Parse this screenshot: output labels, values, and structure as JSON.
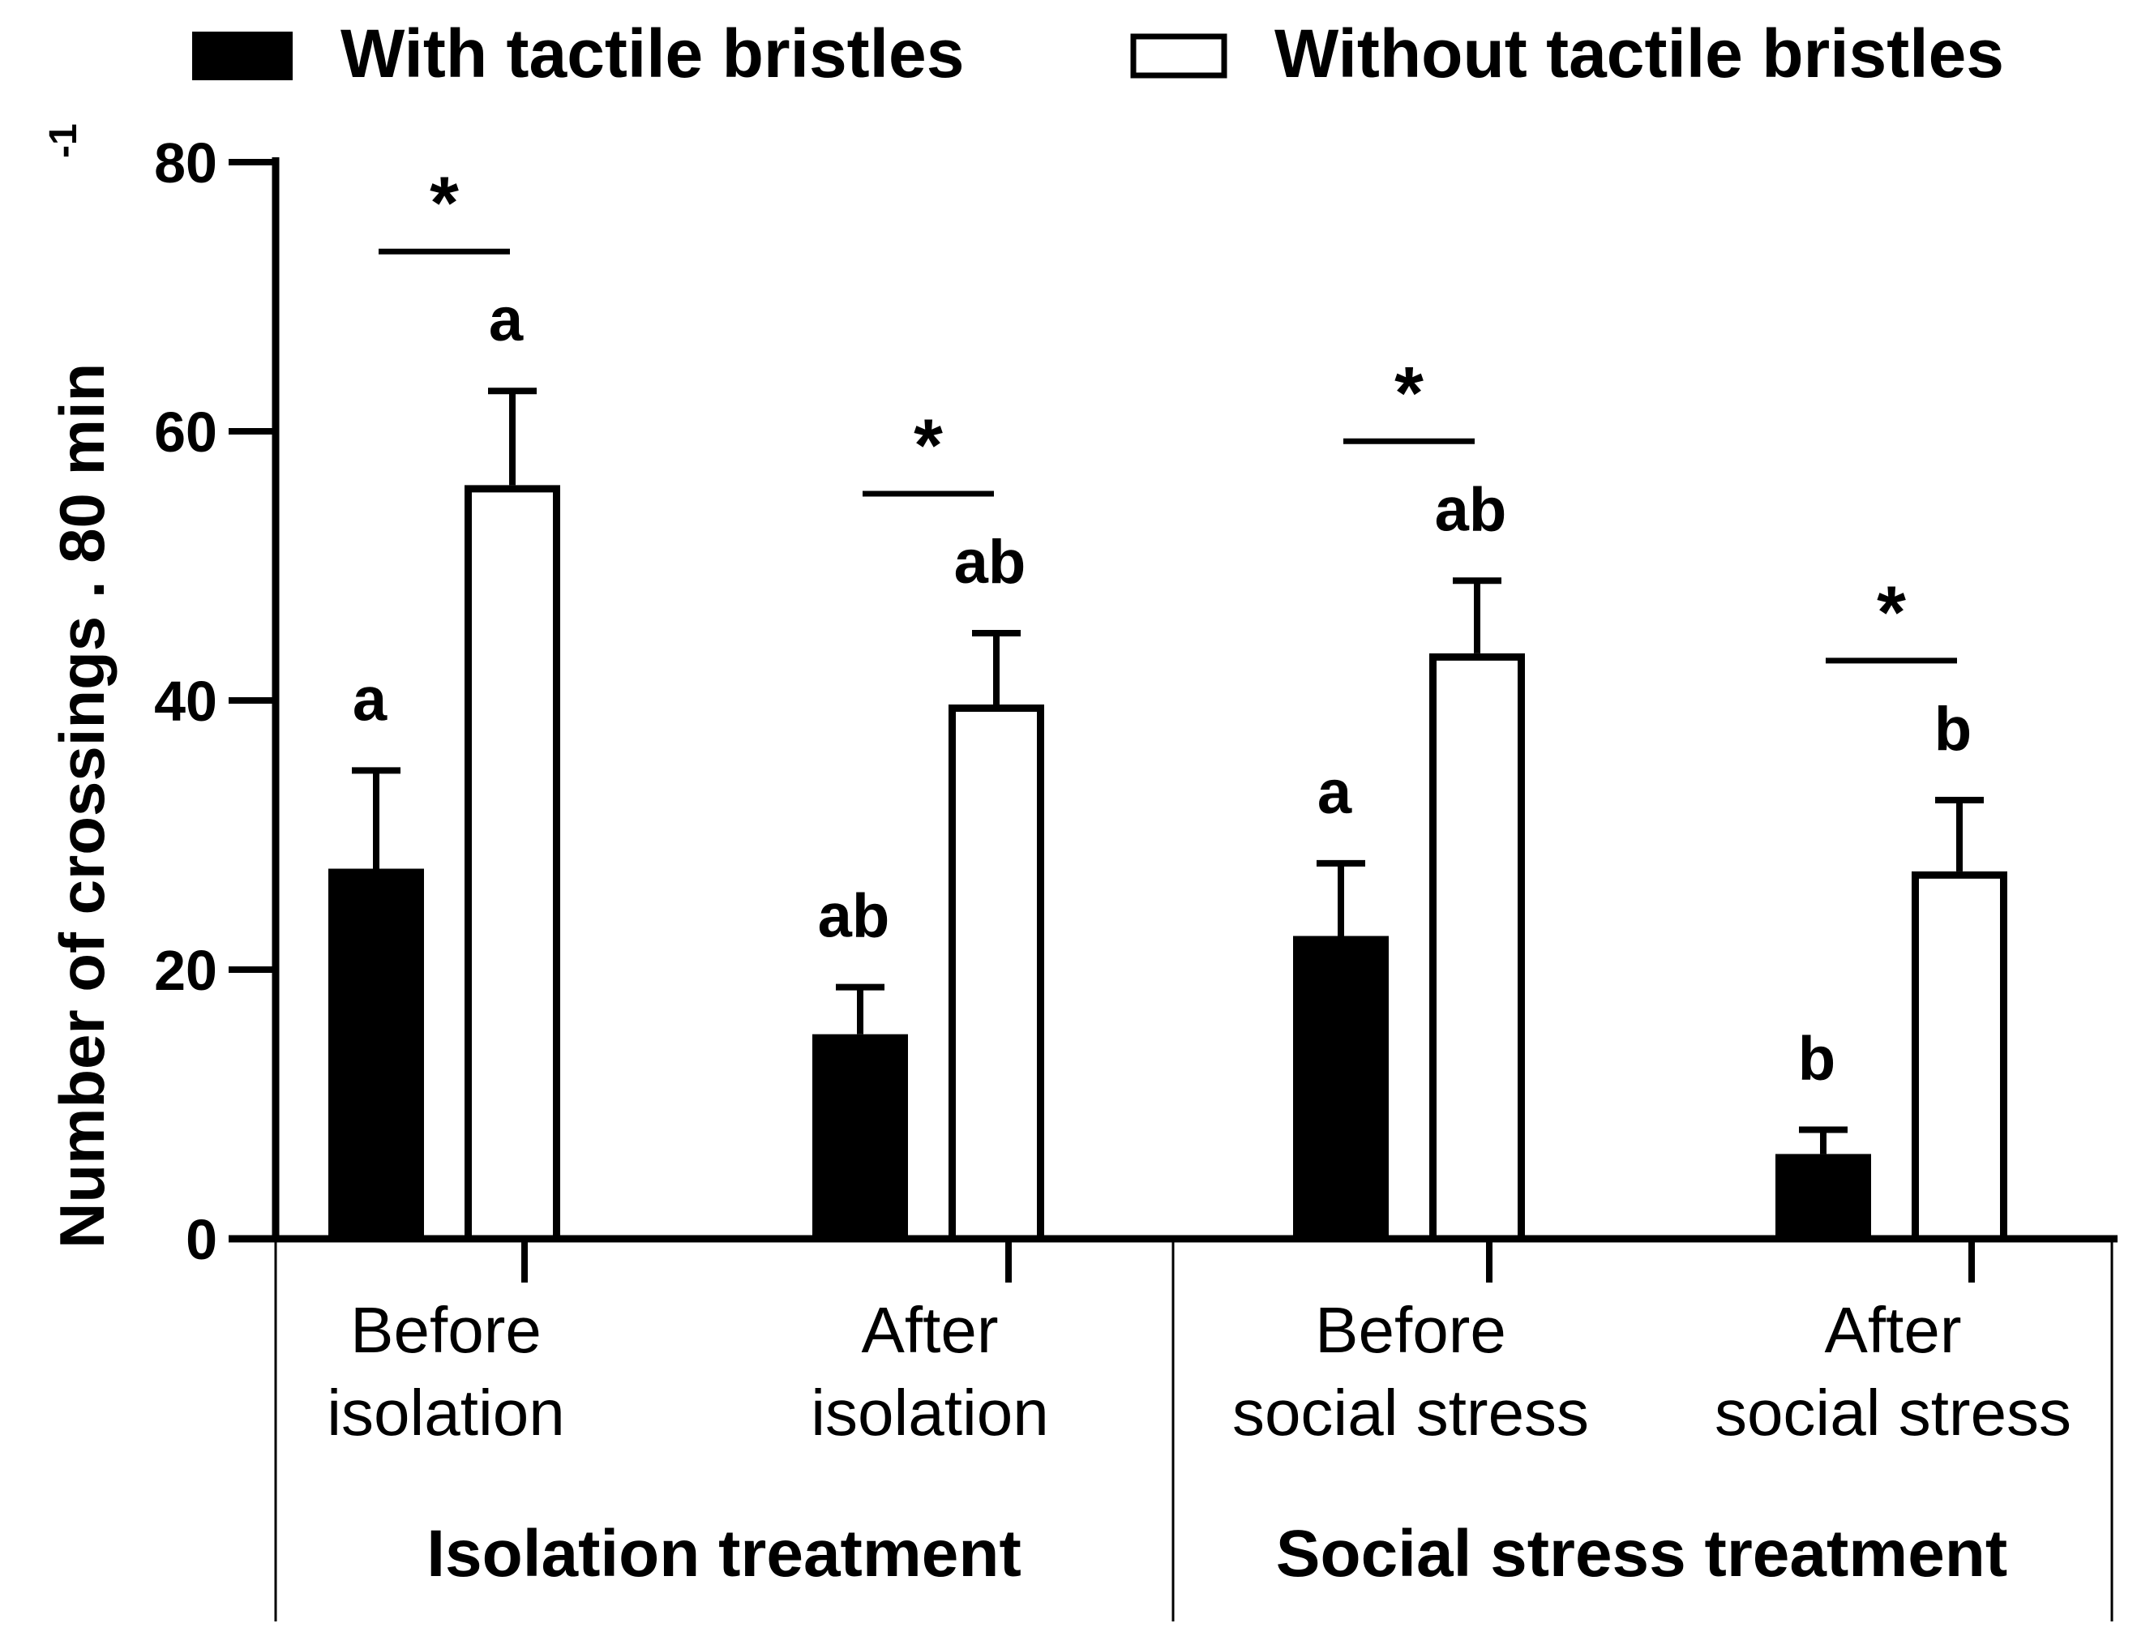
{
  "chart_data": {
    "type": "bar",
    "ylabel": "Number of crossings . 80 min",
    "ylabel_superscript": "-1",
    "ylim": [
      0,
      80
    ],
    "yticks": [
      0,
      20,
      40,
      60,
      80
    ],
    "categories": [
      [
        "Before",
        "isolation"
      ],
      [
        "After",
        "isolation"
      ],
      [
        "Before",
        "social stress"
      ],
      [
        "After",
        "social stress"
      ]
    ],
    "groups": [
      {
        "label": "Isolation treatment",
        "categories": [
          0,
          1
        ]
      },
      {
        "label": "Social stress treatment",
        "categories": [
          2,
          3
        ]
      }
    ],
    "series": [
      {
        "name": "With tactile bristles",
        "fill": "#000000",
        "values": [
          27.5,
          15.2,
          22.5,
          6.3
        ],
        "errors": [
          7.3,
          3.5,
          5.4,
          1.8
        ],
        "letters": [
          "a",
          "ab",
          "a",
          "b"
        ]
      },
      {
        "name": "Without tactile bristles",
        "fill": "#ffffff",
        "values": [
          56,
          39.7,
          43.5,
          27.3
        ],
        "errors": [
          7.0,
          5.3,
          5.4,
          5.3
        ],
        "letters": [
          "a",
          "ab",
          "ab",
          "b"
        ]
      }
    ],
    "significance": [
      "*",
      "*",
      "*",
      "*"
    ]
  }
}
